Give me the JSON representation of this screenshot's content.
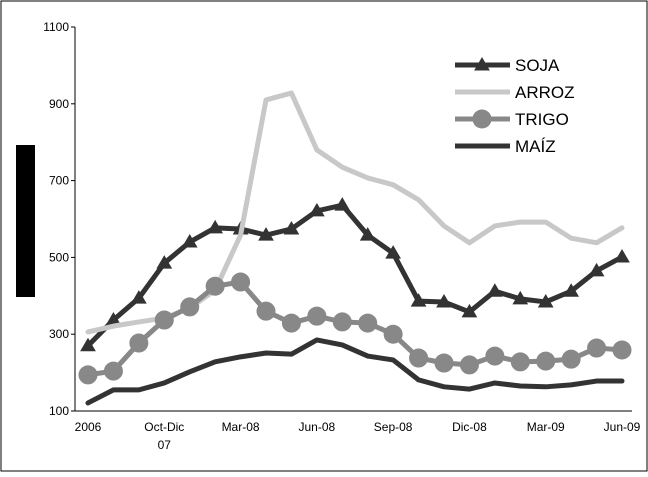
{
  "chart_data": {
    "type": "line",
    "categories": [
      "2006",
      null,
      null,
      "Oct-Dic 07",
      null,
      null,
      "Mar-08",
      null,
      null,
      "Jun-08",
      null,
      null,
      "Sep-08",
      null,
      null,
      "Dic-08",
      null,
      null,
      "Mar-09",
      null,
      null,
      "Jun-09"
    ],
    "series": [
      {
        "name": "SOJA",
        "color": "#333333",
        "marker": "triangle",
        "values": [
          270,
          337,
          394,
          485,
          540,
          577,
          574,
          558,
          574,
          621,
          636,
          558,
          511,
          386,
          384,
          358,
          412,
          392,
          384,
          412,
          465,
          501
        ]
      },
      {
        "name": "ARROZ",
        "color": "#c8c8c8",
        "marker": null,
        "values": [
          306,
          321,
          332,
          342,
          368,
          415,
          558,
          910,
          928,
          780,
          735,
          707,
          689,
          650,
          582,
          538,
          582,
          592,
          592,
          550,
          538,
          577
        ]
      },
      {
        "name": "TRIGO",
        "color": "#888888",
        "marker": "circle",
        "values": [
          194,
          204,
          277,
          337,
          371,
          425,
          436,
          360,
          329,
          347,
          332,
          329,
          300,
          238,
          225,
          220,
          243,
          228,
          230,
          235,
          264,
          259
        ]
      },
      {
        "name": "MAÍZ",
        "color": "#333333",
        "marker": null,
        "values": [
          121,
          155,
          155,
          173,
          202,
          228,
          241,
          251,
          248,
          285,
          272,
          243,
          233,
          181,
          163,
          157,
          173,
          165,
          163,
          168,
          178,
          178
        ]
      }
    ],
    "ylim": [
      100,
      1100
    ],
    "yticks": [
      100,
      300,
      500,
      700,
      900,
      1100
    ],
    "grid": false,
    "legend": "top-right"
  }
}
